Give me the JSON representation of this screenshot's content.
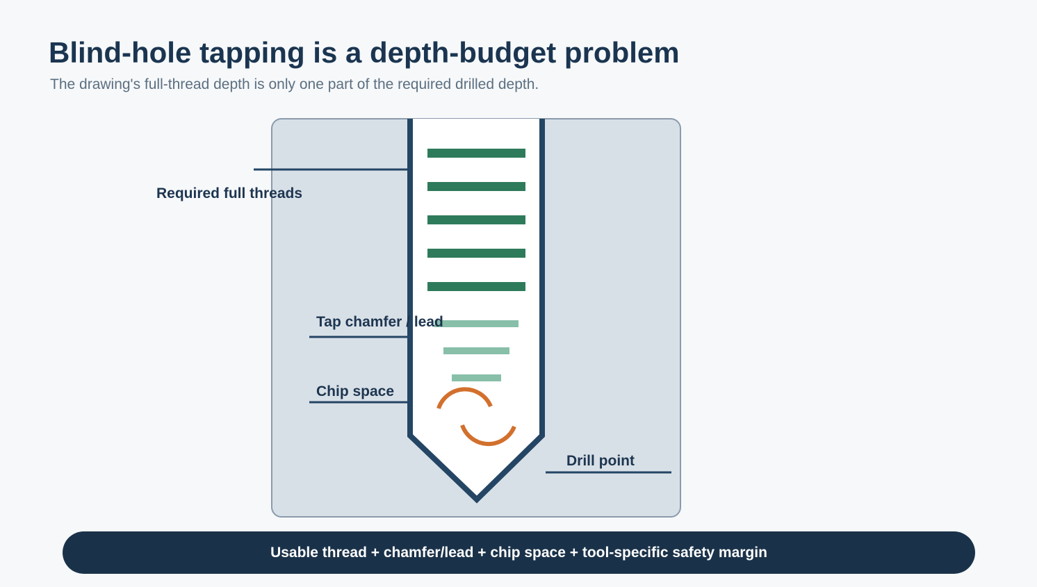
{
  "header": {
    "title": "Blind-hole tapping is a depth-budget problem",
    "subtitle": "The drawing's full-thread depth is only one part of the required drilled depth."
  },
  "labels": {
    "full_threads": "Required full threads",
    "chamfer": "Tap chamfer / lead",
    "chip_space": "Chip space",
    "drill_point": "Drill point"
  },
  "footer": {
    "text": "Usable thread + chamfer/lead + chip space + tool-specific safety margin"
  },
  "colors": {
    "block_fill": "#d8e0e7",
    "block_stroke": "#8a9bac",
    "hole_wall": "#244564",
    "full_thread": "#2e7b5b",
    "chamfer_thread": "#88bfa9",
    "chip": "#d2702d",
    "footer_bg": "#1a3249"
  }
}
